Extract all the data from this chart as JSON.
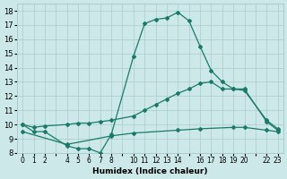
{
  "xlabel": "Humidex (Indice chaleur)",
  "background_color": "#cce8e8",
  "grid_color": "#aacccc",
  "line_color": "#1a7a6a",
  "line1_x": [
    0,
    1,
    2,
    4,
    5,
    6,
    7,
    8,
    10,
    11,
    12,
    13,
    14,
    15,
    16,
    17,
    18,
    19,
    20,
    22,
    23
  ],
  "line1_y": [
    10.0,
    9.5,
    9.5,
    8.5,
    8.3,
    8.3,
    8.0,
    9.3,
    14.8,
    17.1,
    17.4,
    17.5,
    17.9,
    17.3,
    15.5,
    13.8,
    13.0,
    12.5,
    12.5,
    10.2,
    9.6
  ],
  "line2_x": [
    0,
    1,
    2,
    4,
    5,
    6,
    7,
    8,
    10,
    11,
    12,
    13,
    14,
    15,
    16,
    17,
    18,
    19,
    20,
    22,
    23
  ],
  "line2_y": [
    10.0,
    9.8,
    9.9,
    10.0,
    10.1,
    10.1,
    10.2,
    10.3,
    10.6,
    11.0,
    11.4,
    11.8,
    12.2,
    12.5,
    12.9,
    13.0,
    12.5,
    12.5,
    12.4,
    10.3,
    9.7
  ],
  "line3_x": [
    0,
    4,
    8,
    10,
    14,
    16,
    19,
    20,
    22,
    23
  ],
  "line3_y": [
    9.5,
    8.6,
    9.2,
    9.4,
    9.6,
    9.7,
    9.8,
    9.8,
    9.6,
    9.5
  ],
  "xlim": [
    -0.5,
    23.5
  ],
  "ylim": [
    8,
    18.5
  ],
  "yticks": [
    8,
    9,
    10,
    11,
    12,
    13,
    14,
    15,
    16,
    17,
    18
  ],
  "xtick_labels": [
    "0",
    "1",
    "2",
    "",
    "4",
    "5",
    "6",
    "7",
    "8",
    "",
    "10",
    "11",
    "12",
    "13",
    "14",
    "",
    "16",
    "17",
    "18",
    "19",
    "20",
    "",
    "22",
    "23"
  ],
  "xtick_positions": [
    0,
    1,
    2,
    3,
    4,
    5,
    6,
    7,
    8,
    9,
    10,
    11,
    12,
    13,
    14,
    15,
    16,
    17,
    18,
    19,
    20,
    21,
    22,
    23
  ]
}
